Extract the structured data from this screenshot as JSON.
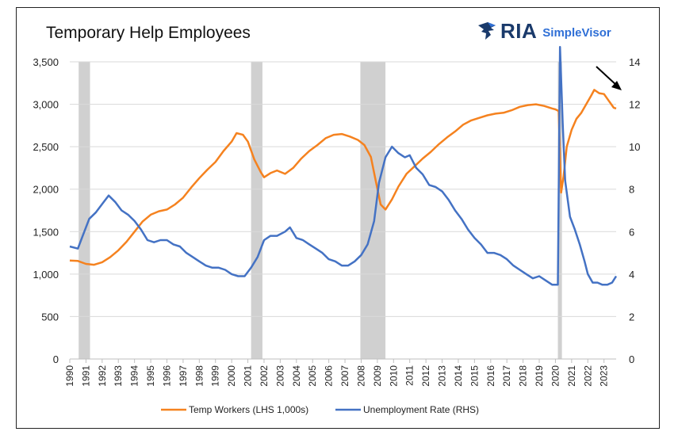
{
  "title": "Temporary Help Employees",
  "logo": {
    "ria": "RIA",
    "simplevisor": "SimpleVisor"
  },
  "colors": {
    "temp": "#f5821f",
    "unemp": "#4472c4",
    "recession": "#d0d0d0",
    "grid": "#d9d9d9"
  },
  "chart_data": {
    "type": "line",
    "title": "Temporary Help Employees",
    "x_ticks": [
      "1990",
      "1991",
      "1992",
      "1993",
      "1994",
      "1995",
      "1996",
      "1997",
      "1998",
      "1999",
      "2000",
      "2001",
      "2002",
      "2003",
      "2004",
      "2005",
      "2006",
      "2007",
      "2008",
      "2009",
      "2010",
      "2011",
      "2012",
      "2013",
      "2014",
      "2015",
      "2016",
      "2017",
      "2018",
      "2019",
      "2020",
      "2021",
      "2022",
      "2023"
    ],
    "xlim": [
      1990.0,
      2023.75
    ],
    "y_left": {
      "ticks": [
        "0",
        "500",
        "1,000",
        "1,500",
        "2,000",
        "2,500",
        "3,000",
        "3,500"
      ],
      "ylim": [
        0,
        3500
      ]
    },
    "y_right": {
      "ticks": [
        "0",
        "2",
        "4",
        "6",
        "8",
        "10",
        "12",
        "14"
      ],
      "ylim": [
        0,
        14
      ]
    },
    "recessions": [
      [
        1990.55,
        1991.25
      ],
      [
        2001.2,
        2001.9
      ],
      [
        2007.95,
        2009.5
      ],
      [
        2020.15,
        2020.4
      ]
    ],
    "legend_position": "bottom",
    "series": [
      {
        "name": "Temp Workers (LHS 1,000s)",
        "axis": "left",
        "color": "#f5821f",
        "points": [
          [
            1990.0,
            1160
          ],
          [
            1990.5,
            1155
          ],
          [
            1991.0,
            1120
          ],
          [
            1991.5,
            1110
          ],
          [
            1992.0,
            1140
          ],
          [
            1992.5,
            1200
          ],
          [
            1993.0,
            1280
          ],
          [
            1993.5,
            1380
          ],
          [
            1994.0,
            1500
          ],
          [
            1994.5,
            1620
          ],
          [
            1995.0,
            1700
          ],
          [
            1995.5,
            1740
          ],
          [
            1996.0,
            1760
          ],
          [
            1996.5,
            1820
          ],
          [
            1997.0,
            1900
          ],
          [
            1997.5,
            2020
          ],
          [
            1998.0,
            2130
          ],
          [
            1998.5,
            2230
          ],
          [
            1999.0,
            2320
          ],
          [
            1999.5,
            2450
          ],
          [
            2000.0,
            2560
          ],
          [
            2000.3,
            2660
          ],
          [
            2000.7,
            2640
          ],
          [
            2001.0,
            2560
          ],
          [
            2001.4,
            2350
          ],
          [
            2001.8,
            2200
          ],
          [
            2002.0,
            2140
          ],
          [
            2002.4,
            2190
          ],
          [
            2002.8,
            2220
          ],
          [
            2003.3,
            2180
          ],
          [
            2003.8,
            2250
          ],
          [
            2004.3,
            2360
          ],
          [
            2004.8,
            2450
          ],
          [
            2005.3,
            2520
          ],
          [
            2005.8,
            2600
          ],
          [
            2006.3,
            2640
          ],
          [
            2006.8,
            2650
          ],
          [
            2007.3,
            2620
          ],
          [
            2007.8,
            2580
          ],
          [
            2008.2,
            2520
          ],
          [
            2008.6,
            2380
          ],
          [
            2008.9,
            2100
          ],
          [
            2009.2,
            1820
          ],
          [
            2009.5,
            1760
          ],
          [
            2009.9,
            1880
          ],
          [
            2010.3,
            2030
          ],
          [
            2010.8,
            2180
          ],
          [
            2011.3,
            2270
          ],
          [
            2011.8,
            2360
          ],
          [
            2012.3,
            2440
          ],
          [
            2012.8,
            2530
          ],
          [
            2013.3,
            2610
          ],
          [
            2013.8,
            2680
          ],
          [
            2014.3,
            2760
          ],
          [
            2014.8,
            2810
          ],
          [
            2015.3,
            2840
          ],
          [
            2015.8,
            2870
          ],
          [
            2016.3,
            2890
          ],
          [
            2016.8,
            2900
          ],
          [
            2017.3,
            2930
          ],
          [
            2017.8,
            2970
          ],
          [
            2018.3,
            2990
          ],
          [
            2018.8,
            3000
          ],
          [
            2019.3,
            2980
          ],
          [
            2019.8,
            2950
          ],
          [
            2020.0,
            2940
          ],
          [
            2020.2,
            2920
          ],
          [
            2020.35,
            1960
          ],
          [
            2020.5,
            2150
          ],
          [
            2020.7,
            2500
          ],
          [
            2021.0,
            2700
          ],
          [
            2021.3,
            2830
          ],
          [
            2021.6,
            2900
          ],
          [
            2021.9,
            3000
          ],
          [
            2022.2,
            3100
          ],
          [
            2022.4,
            3170
          ],
          [
            2022.7,
            3130
          ],
          [
            2023.0,
            3120
          ],
          [
            2023.3,
            3040
          ],
          [
            2023.6,
            2960
          ],
          [
            2023.75,
            2950
          ]
        ]
      },
      {
        "name": "Unemployment Rate (RHS)",
        "axis": "right",
        "color": "#4472c4",
        "points": [
          [
            1990.0,
            5.3
          ],
          [
            1990.5,
            5.2
          ],
          [
            1990.8,
            5.8
          ],
          [
            1991.2,
            6.6
          ],
          [
            1991.6,
            6.9
          ],
          [
            1992.0,
            7.3
          ],
          [
            1992.4,
            7.7
          ],
          [
            1992.8,
            7.4
          ],
          [
            1993.2,
            7.0
          ],
          [
            1993.6,
            6.8
          ],
          [
            1994.0,
            6.5
          ],
          [
            1994.4,
            6.1
          ],
          [
            1994.8,
            5.6
          ],
          [
            1995.2,
            5.5
          ],
          [
            1995.6,
            5.6
          ],
          [
            1996.0,
            5.6
          ],
          [
            1996.4,
            5.4
          ],
          [
            1996.8,
            5.3
          ],
          [
            1997.2,
            5.0
          ],
          [
            1997.6,
            4.8
          ],
          [
            1998.0,
            4.6
          ],
          [
            1998.4,
            4.4
          ],
          [
            1998.8,
            4.3
          ],
          [
            1999.2,
            4.3
          ],
          [
            1999.6,
            4.2
          ],
          [
            2000.0,
            4.0
          ],
          [
            2000.4,
            3.9
          ],
          [
            2000.8,
            3.9
          ],
          [
            2001.2,
            4.3
          ],
          [
            2001.6,
            4.8
          ],
          [
            2002.0,
            5.6
          ],
          [
            2002.4,
            5.8
          ],
          [
            2002.8,
            5.8
          ],
          [
            2003.3,
            6.0
          ],
          [
            2003.6,
            6.2
          ],
          [
            2004.0,
            5.7
          ],
          [
            2004.4,
            5.6
          ],
          [
            2004.8,
            5.4
          ],
          [
            2005.2,
            5.2
          ],
          [
            2005.6,
            5.0
          ],
          [
            2006.0,
            4.7
          ],
          [
            2006.4,
            4.6
          ],
          [
            2006.8,
            4.4
          ],
          [
            2007.2,
            4.4
          ],
          [
            2007.6,
            4.6
          ],
          [
            2008.0,
            4.9
          ],
          [
            2008.4,
            5.4
          ],
          [
            2008.8,
            6.5
          ],
          [
            2009.1,
            8.3
          ],
          [
            2009.5,
            9.5
          ],
          [
            2009.9,
            10.0
          ],
          [
            2010.3,
            9.7
          ],
          [
            2010.7,
            9.5
          ],
          [
            2011.0,
            9.6
          ],
          [
            2011.4,
            9.0
          ],
          [
            2011.8,
            8.7
          ],
          [
            2012.2,
            8.2
          ],
          [
            2012.6,
            8.1
          ],
          [
            2013.0,
            7.9
          ],
          [
            2013.4,
            7.5
          ],
          [
            2013.8,
            7.0
          ],
          [
            2014.2,
            6.6
          ],
          [
            2014.6,
            6.1
          ],
          [
            2015.0,
            5.7
          ],
          [
            2015.4,
            5.4
          ],
          [
            2015.8,
            5.0
          ],
          [
            2016.2,
            5.0
          ],
          [
            2016.6,
            4.9
          ],
          [
            2017.0,
            4.7
          ],
          [
            2017.4,
            4.4
          ],
          [
            2017.8,
            4.2
          ],
          [
            2018.2,
            4.0
          ],
          [
            2018.6,
            3.8
          ],
          [
            2019.0,
            3.9
          ],
          [
            2019.4,
            3.7
          ],
          [
            2019.8,
            3.5
          ],
          [
            2020.15,
            3.5
          ],
          [
            2020.28,
            14.7
          ],
          [
            2020.45,
            11.1
          ],
          [
            2020.6,
            8.4
          ],
          [
            2020.9,
            6.7
          ],
          [
            2021.2,
            6.1
          ],
          [
            2021.5,
            5.4
          ],
          [
            2021.8,
            4.6
          ],
          [
            2022.0,
            4.0
          ],
          [
            2022.3,
            3.6
          ],
          [
            2022.6,
            3.6
          ],
          [
            2022.9,
            3.5
          ],
          [
            2023.2,
            3.5
          ],
          [
            2023.5,
            3.6
          ],
          [
            2023.75,
            3.9
          ]
        ]
      }
    ]
  }
}
